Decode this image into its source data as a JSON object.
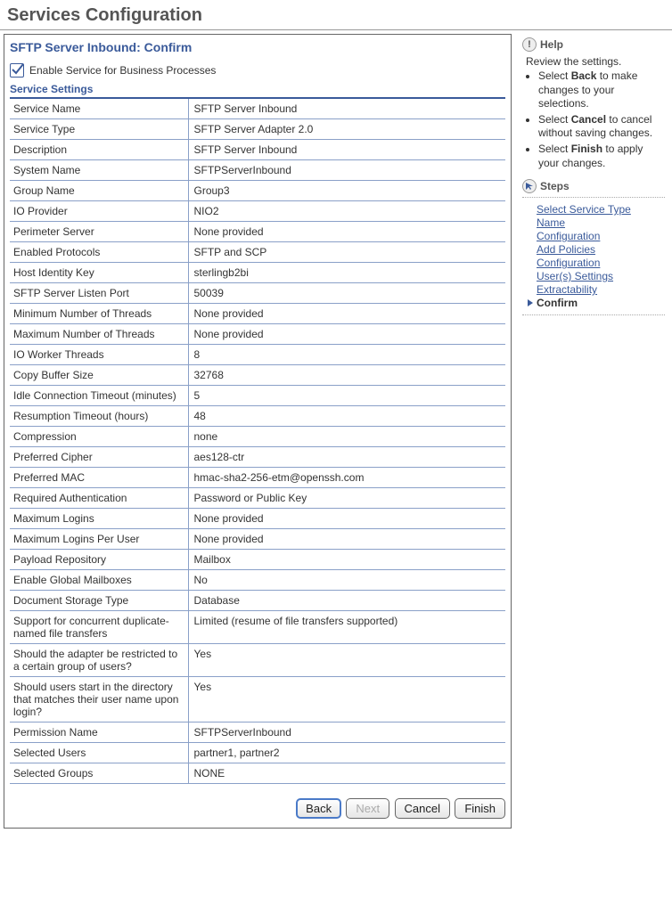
{
  "page": {
    "title": "Services Configuration"
  },
  "panel": {
    "title": "SFTP Server Inbound: Confirm",
    "enable_label": "Enable Service for Business Processes",
    "section_header": "Service Settings"
  },
  "settings": [
    {
      "label": "Service Name",
      "value": "SFTP Server Inbound"
    },
    {
      "label": "Service Type",
      "value": "SFTP Server Adapter 2.0"
    },
    {
      "label": "Description",
      "value": "SFTP Server Inbound"
    },
    {
      "label": "System Name",
      "value": "SFTPServerInbound"
    },
    {
      "label": "Group Name",
      "value": "Group3"
    },
    {
      "label": "IO Provider",
      "value": "NIO2"
    },
    {
      "label": "Perimeter Server",
      "value": "None provided"
    },
    {
      "label": "Enabled Protocols",
      "value": "SFTP and SCP"
    },
    {
      "label": "Host Identity Key",
      "value": "sterlingb2bi"
    },
    {
      "label": "SFTP Server Listen Port",
      "value": "50039"
    },
    {
      "label": "Minimum Number of Threads",
      "value": "None provided"
    },
    {
      "label": "Maximum Number of Threads",
      "value": "None provided"
    },
    {
      "label": "IO Worker Threads",
      "value": "8"
    },
    {
      "label": "Copy Buffer Size",
      "value": "32768"
    },
    {
      "label": "Idle Connection Timeout (minutes)",
      "value": "5"
    },
    {
      "label": "Resumption Timeout (hours)",
      "value": "48"
    },
    {
      "label": "Compression",
      "value": "none"
    },
    {
      "label": "Preferred Cipher",
      "value": "aes128-ctr"
    },
    {
      "label": "Preferred MAC",
      "value": "hmac-sha2-256-etm@openssh.com"
    },
    {
      "label": "Required Authentication",
      "value": "Password or Public Key"
    },
    {
      "label": "Maximum Logins",
      "value": "None provided"
    },
    {
      "label": "Maximum Logins Per User",
      "value": "None provided"
    },
    {
      "label": "Payload Repository",
      "value": "Mailbox"
    },
    {
      "label": "Enable Global Mailboxes",
      "value": "No"
    },
    {
      "label": "Document Storage Type",
      "value": "Database"
    },
    {
      "label": "Support for concurrent duplicate-named file transfers",
      "value": "Limited (resume of file transfers supported)"
    },
    {
      "label": "Should the adapter be restricted to a certain group of users?",
      "value": "Yes"
    },
    {
      "label": "Should users start in the directory that matches their user name upon login?",
      "value": "Yes"
    },
    {
      "label": "Permission Name",
      "value": "SFTPServerInbound"
    },
    {
      "label": "Selected Users",
      "value": "partner1, partner2"
    },
    {
      "label": "Selected Groups",
      "value": "NONE"
    }
  ],
  "buttons": {
    "back": "Back",
    "next": "Next",
    "cancel": "Cancel",
    "finish": "Finish"
  },
  "help": {
    "title": "Help",
    "intro": "Review the settings.",
    "items": [
      {
        "pre": "Select ",
        "bold": "Back",
        "post": " to make changes to your selections."
      },
      {
        "pre": "Select ",
        "bold": "Cancel",
        "post": " to cancel without saving changes."
      },
      {
        "pre": "Select ",
        "bold": "Finish",
        "post": " to apply your changes."
      }
    ]
  },
  "steps": {
    "title": "Steps",
    "links": [
      "Select Service Type",
      "Name",
      "Configuration",
      "Add Policies",
      "Configuration",
      "User(s) Settings",
      "Extractability"
    ],
    "current": "Confirm"
  },
  "colors": {
    "heading_blue": "#3a5a9a",
    "row_border": "#8aa0c8",
    "panel_border": "#666666"
  }
}
